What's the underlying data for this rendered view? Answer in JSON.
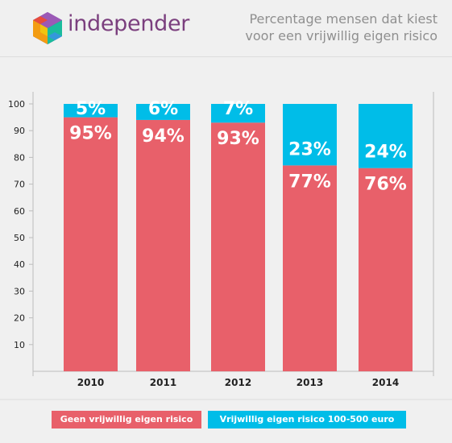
{
  "header": {
    "brand": "independer",
    "title_line1": "Percentage mensen dat kiest",
    "title_line2": "voor een vrijwillig eigen risico",
    "colors": {
      "brand": "#7b3f7e",
      "title": "#8f8f8f"
    }
  },
  "chart_data": {
    "type": "bar",
    "stacked": true,
    "categories": [
      "2010",
      "2011",
      "2012",
      "2013",
      "2014"
    ],
    "series": [
      {
        "name": "Geen vrijwillig eigen risico",
        "color": "#e8606a",
        "values": [
          95,
          94,
          93,
          77,
          76
        ],
        "labels": [
          "95%",
          "94%",
          "93%",
          "77%",
          "76%"
        ]
      },
      {
        "name": "Vrijwillig eigen risico 100-500 euro",
        "color": "#00bde8",
        "values": [
          5,
          6,
          7,
          23,
          24
        ],
        "labels": [
          "5%",
          "6%",
          "7%",
          "23%",
          "24%"
        ]
      }
    ],
    "yticks": [
      "10",
      "20",
      "30",
      "40",
      "50",
      "60",
      "70",
      "80",
      "90",
      "100"
    ],
    "ylim": [
      0,
      100
    ],
    "grid": false,
    "legend_position": "bottom"
  },
  "legend": {
    "item1": "Geen vrijwillig eigen risico",
    "item2": "Vrijwillig eigen risico 100-500 euro"
  }
}
